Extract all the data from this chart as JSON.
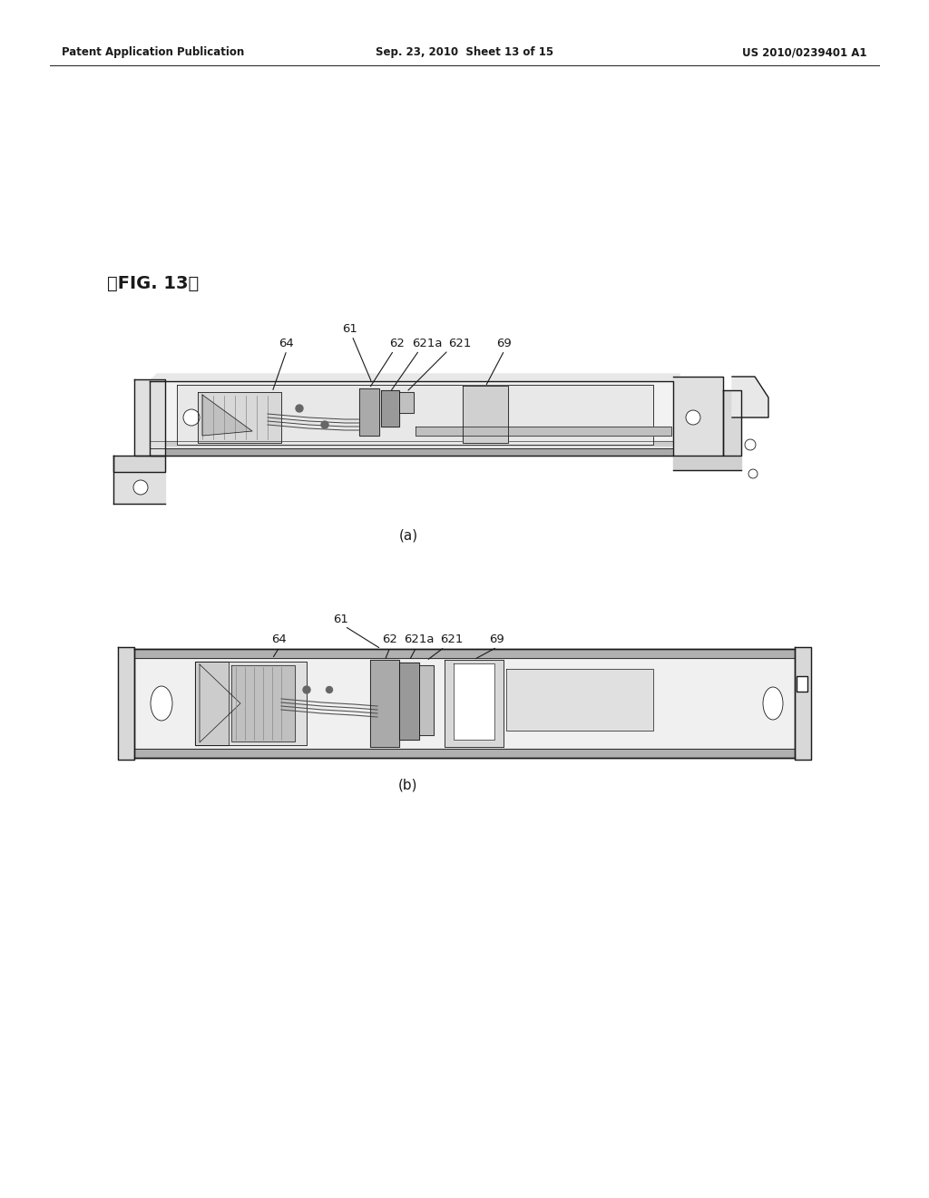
{
  "bg_color": "#ffffff",
  "text_color": "#000000",
  "header_left": "Patent Application Publication",
  "header_center": "Sep. 23, 2010  Sheet 13 of 15",
  "header_right": "US 2010/0239401 A1",
  "fig_label": "【FIG. 13】",
  "sub_a": "(a)",
  "sub_b": "(b)",
  "line_color": "#1a1a1a",
  "fill_light": "#f0f0f0",
  "fill_mid": "#d8d8d8",
  "fill_dark": "#b0b0b0",
  "fill_gray": "#888888"
}
